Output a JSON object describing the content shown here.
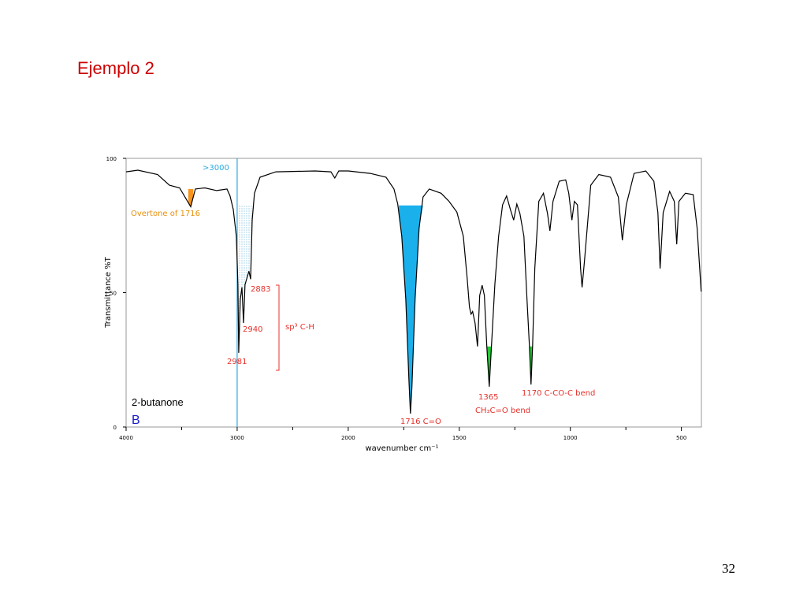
{
  "slide_title": "Ejemplo 2",
  "page_number": "32",
  "sample_name": "2-butanone",
  "panel_label": "B",
  "chart_data": {
    "type": "line",
    "x_label": "wavenumber cm⁻¹",
    "y_label": "Transmittance %T",
    "xlim": [
      4000,
      410
    ],
    "ylim": [
      0,
      100
    ],
    "xticks": [
      4000,
      3000,
      2000,
      1500,
      1000,
      500
    ],
    "minor_xticks": [
      3500,
      2500,
      1750,
      1250,
      750
    ],
    "yticks": [
      0,
      50,
      100
    ],
    "x_break": 2000,
    "x_break_scale": 2,
    "color": "#000000",
    "x": [
      4000,
      3894,
      3716,
      3610,
      3518,
      3418,
      3376,
      3291,
      3184,
      3092,
      3064,
      3035,
      3007,
      2993,
      2986,
      2972,
      2957,
      2943,
      2929,
      2908,
      2894,
      2879,
      2865,
      2844,
      2794,
      2652,
      2298,
      2156,
      2121,
      2085,
      2000,
      1901,
      1830,
      1794,
      1777,
      1759,
      1741,
      1727,
      1720,
      1713,
      1699,
      1681,
      1663,
      1635,
      1582,
      1546,
      1511,
      1482,
      1465,
      1454,
      1447,
      1440,
      1429,
      1418,
      1408,
      1397,
      1387,
      1376,
      1365,
      1355,
      1340,
      1323,
      1305,
      1287,
      1270,
      1255,
      1241,
      1227,
      1209,
      1195,
      1184,
      1177,
      1170,
      1160,
      1142,
      1121,
      1103,
      1092,
      1078,
      1050,
      1021,
      1007,
      993,
      982,
      968,
      954,
      947,
      936,
      908,
      872,
      819,
      784,
      766,
      748,
      713,
      660,
      624,
      606,
      596,
      582,
      553,
      532,
      521,
      511,
      482,
      447,
      429,
      411
    ],
    "values": [
      95,
      95.6,
      94,
      90,
      89,
      82,
      88.6,
      89,
      88,
      88.6,
      86,
      81,
      71,
      53,
      27.6,
      47.5,
      52,
      38.7,
      53,
      56,
      58,
      55,
      77,
      87,
      93,
      95,
      95.3,
      95,
      92.7,
      95.3,
      95.3,
      94.4,
      93,
      88.6,
      83,
      71,
      47.5,
      18,
      5,
      15,
      47.5,
      74,
      85.6,
      88.6,
      87,
      84,
      80,
      71,
      56,
      44.6,
      42,
      43,
      38.7,
      30,
      49,
      52.8,
      49,
      30,
      15,
      30,
      53,
      71,
      82.7,
      86,
      81,
      77,
      83,
      79.5,
      71,
      47.5,
      30,
      15.8,
      30,
      59,
      84,
      87,
      79.5,
      73,
      84,
      91.5,
      92,
      87,
      77,
      84,
      82.7,
      59,
      52,
      62,
      90,
      94,
      93,
      85.6,
      69.5,
      82.7,
      94.4,
      95.3,
      91.5,
      79.8,
      59,
      79.8,
      87.7,
      84,
      68,
      84,
      87,
      86.5,
      74,
      50.4
    ],
    "vline": {
      "x": 3000,
      "color": "#29a9e1"
    },
    "highlights": [
      {
        "from": 3440,
        "to": 3395,
        "level": 88.6,
        "color": "#f7941d"
      },
      {
        "from": 3010,
        "to": 2860,
        "level": 82.5,
        "color": "#9fd3ec",
        "pattern": "dots"
      },
      {
        "from": 1772,
        "to": 1660,
        "level": 82.5,
        "color": "#1ab0ec"
      },
      {
        "from": 1381,
        "to": 1350,
        "level": 30,
        "color": "#22cc33"
      },
      {
        "from": 1186,
        "to": 1166,
        "level": 30,
        "color": "#22cc33"
      }
    ],
    "annotations": [
      {
        "text": ">3000",
        "color": "#29a9e1"
      },
      {
        "text": "Overtone of 1716",
        "color": "#e8900c"
      },
      {
        "text": "2883",
        "color": "#e8302a"
      },
      {
        "text": "2940",
        "color": "#e8302a"
      },
      {
        "text": "2981",
        "color": "#e8302a"
      },
      {
        "text": "sp³ C-H",
        "color": "#e8302a"
      },
      {
        "text": "1716  C=O",
        "color": "#e8302a"
      },
      {
        "text": "1365",
        "color": "#e8302a"
      },
      {
        "text": "CH₃C=O bend",
        "color": "#e8302a"
      },
      {
        "text": "1170 C-CO-C bend",
        "color": "#e8302a"
      }
    ]
  }
}
